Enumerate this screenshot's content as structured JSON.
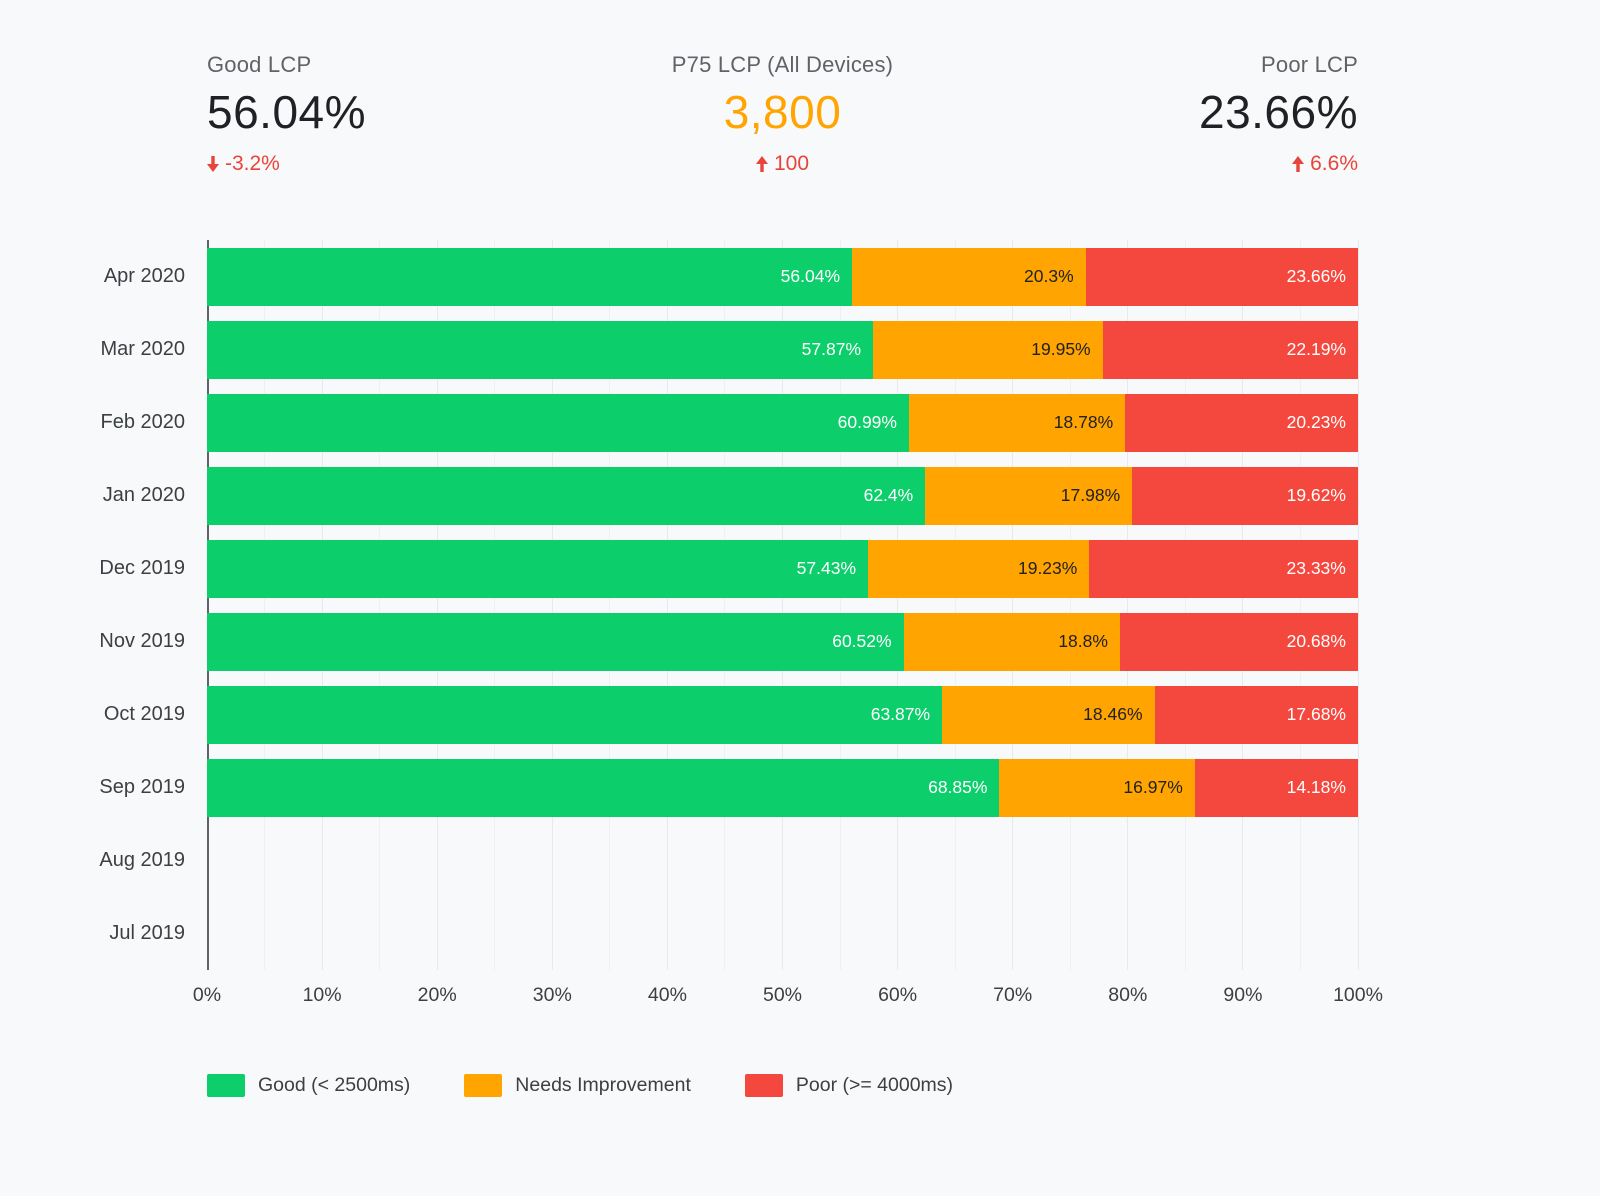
{
  "kpis": [
    {
      "label": "Good LCP",
      "value": "56.04%",
      "delta": "-3.2%",
      "direction": "down",
      "value_color": "#202124",
      "delta_color": "#E8443A"
    },
    {
      "label": "P75 LCP (All Devices)",
      "value": "3,800",
      "delta": "100",
      "direction": "up",
      "value_color": "#FFA400",
      "delta_color": "#E8443A"
    },
    {
      "label": "Poor LCP",
      "value": "23.66%",
      "delta": "6.6%",
      "direction": "up",
      "value_color": "#202124",
      "delta_color": "#E8443A"
    }
  ],
  "chart_data": {
    "type": "bar",
    "orientation": "horizontal",
    "stacked": true,
    "title": "",
    "xlabel": "",
    "ylabel": "",
    "xlim": [
      0,
      100
    ],
    "grid": "vertical",
    "legend_position": "bottom",
    "value_suffix": "%",
    "categories": [
      "Apr 2020",
      "Mar 2020",
      "Feb 2020",
      "Jan 2020",
      "Dec 2019",
      "Nov 2019",
      "Oct 2019",
      "Sep 2019",
      "Aug 2019",
      "Jul 2019"
    ],
    "series": [
      {
        "name": "Good (< 2500ms)",
        "color": "#0CCE6B",
        "label_color": "#FFFFFF",
        "values": [
          56.04,
          57.87,
          60.99,
          62.4,
          57.43,
          60.52,
          63.87,
          68.85,
          null,
          null
        ]
      },
      {
        "name": "Needs Improvement",
        "color": "#FFA400",
        "label_color": "#212121",
        "values": [
          20.3,
          19.95,
          18.78,
          17.98,
          19.23,
          18.8,
          18.46,
          16.97,
          null,
          null
        ]
      },
      {
        "name": "Poor (>= 4000ms)",
        "color": "#F4483E",
        "label_color": "#FFFFFF",
        "values": [
          23.66,
          22.19,
          20.23,
          19.62,
          23.33,
          20.68,
          17.68,
          14.18,
          null,
          null
        ]
      }
    ],
    "x_ticks": [
      "0%",
      "10%",
      "20%",
      "30%",
      "40%",
      "50%",
      "60%",
      "70%",
      "80%",
      "90%",
      "100%"
    ]
  }
}
